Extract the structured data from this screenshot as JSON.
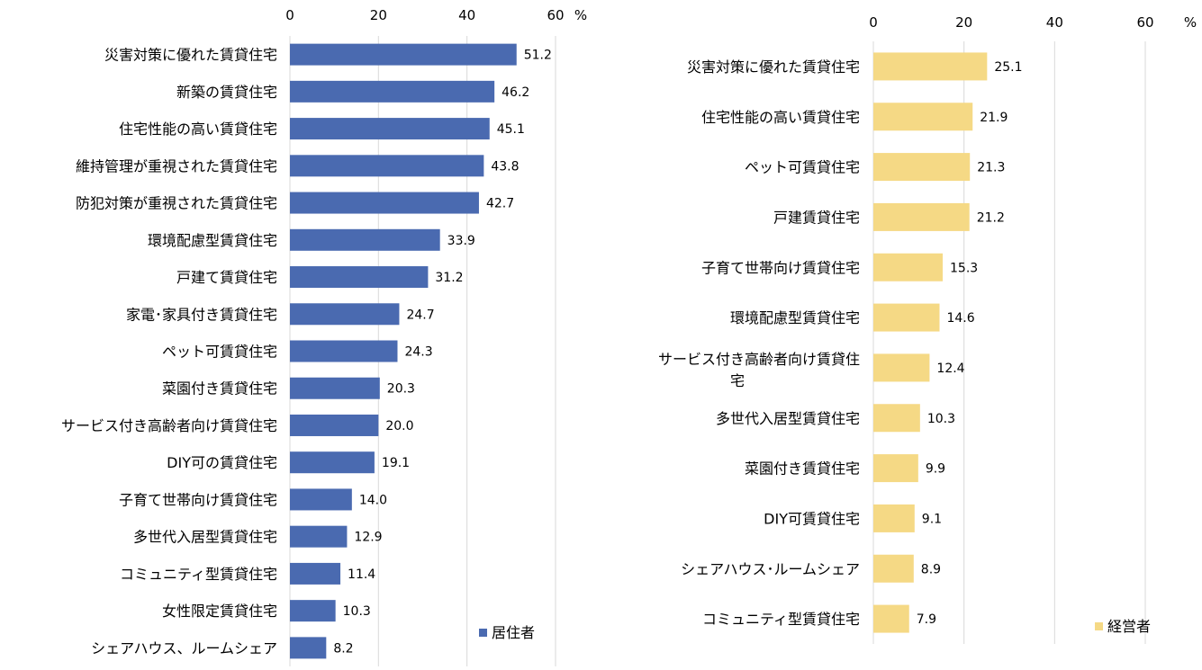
{
  "chart_data": [
    {
      "type": "bar",
      "orientation": "horizontal",
      "xlim": [
        0,
        60
      ],
      "ticks": [
        "0",
        "20",
        "40",
        "60"
      ],
      "unit": "%",
      "grid": true,
      "legend_position": "bottom-right",
      "color": "#4a6ab0",
      "series": [
        {
          "name": "居住者",
          "values": [
            51.2,
            46.2,
            45.1,
            43.8,
            42.7,
            33.9,
            31.2,
            24.7,
            24.3,
            20.3,
            20.0,
            19.1,
            14.0,
            12.9,
            11.4,
            10.3,
            8.2
          ]
        }
      ],
      "categories": [
        "災害対策に優れた賃貸住宅",
        "新築の賃貸住宅",
        "住宅性能の高い賃貸住宅",
        "維持管理が重視された賃貸住宅",
        "防犯対策が重視された賃貸住宅",
        "環境配慮型賃貸住宅",
        "戸建て賃貸住宅",
        "家電･家具付き賃貸住宅",
        "ペット可賃貸住宅",
        "菜園付き賃貸住宅",
        "サービス付き高齢者向け賃貸住宅",
        "DIY可の賃貸住宅",
        "子育て世帯向け賃貸住宅",
        "多世代入居型賃貸住宅",
        "コミュニティ型賃貸住宅",
        "女性限定賃貸住宅",
        "シェアハウス、ルームシェア"
      ],
      "labels": [
        "51.2",
        "46.2",
        "45.1",
        "43.8",
        "42.7",
        "33.9",
        "31.2",
        "24.7",
        "24.3",
        "20.3",
        "20.0",
        "19.1",
        "14.0",
        "12.9",
        "11.4",
        "10.3",
        "8.2"
      ]
    },
    {
      "type": "bar",
      "orientation": "horizontal",
      "xlim": [
        0,
        60
      ],
      "ticks": [
        "0",
        "20",
        "40",
        "60"
      ],
      "unit": "%",
      "grid": true,
      "legend_position": "bottom-right",
      "color": "#f5d985",
      "series": [
        {
          "name": "経営者",
          "values": [
            25.1,
            21.9,
            21.3,
            21.2,
            15.3,
            14.6,
            12.4,
            10.3,
            9.9,
            9.1,
            8.9,
            7.9
          ]
        }
      ],
      "categories": [
        "災害対策に優れた賃貸住宅",
        "住宅性能の高い賃貸住宅",
        "ペット可賃貸住宅",
        "戸建賃貸住宅",
        "子育て世帯向け賃貸住宅",
        "環境配慮型賃貸住宅",
        "サービス付き高齢者向け賃貸住宅",
        "多世代入居型賃貸住宅",
        "菜園付き賃貸住宅",
        "DIY可賃貸住宅",
        "シェアハウス･ルームシェア",
        "コミュニティ型賃貸住宅"
      ],
      "labels": [
        "25.1",
        "21.9",
        "21.3",
        "21.2",
        "15.3",
        "14.6",
        "12.4",
        "10.3",
        "9.9",
        "9.1",
        "8.9",
        "7.9"
      ]
    }
  ]
}
